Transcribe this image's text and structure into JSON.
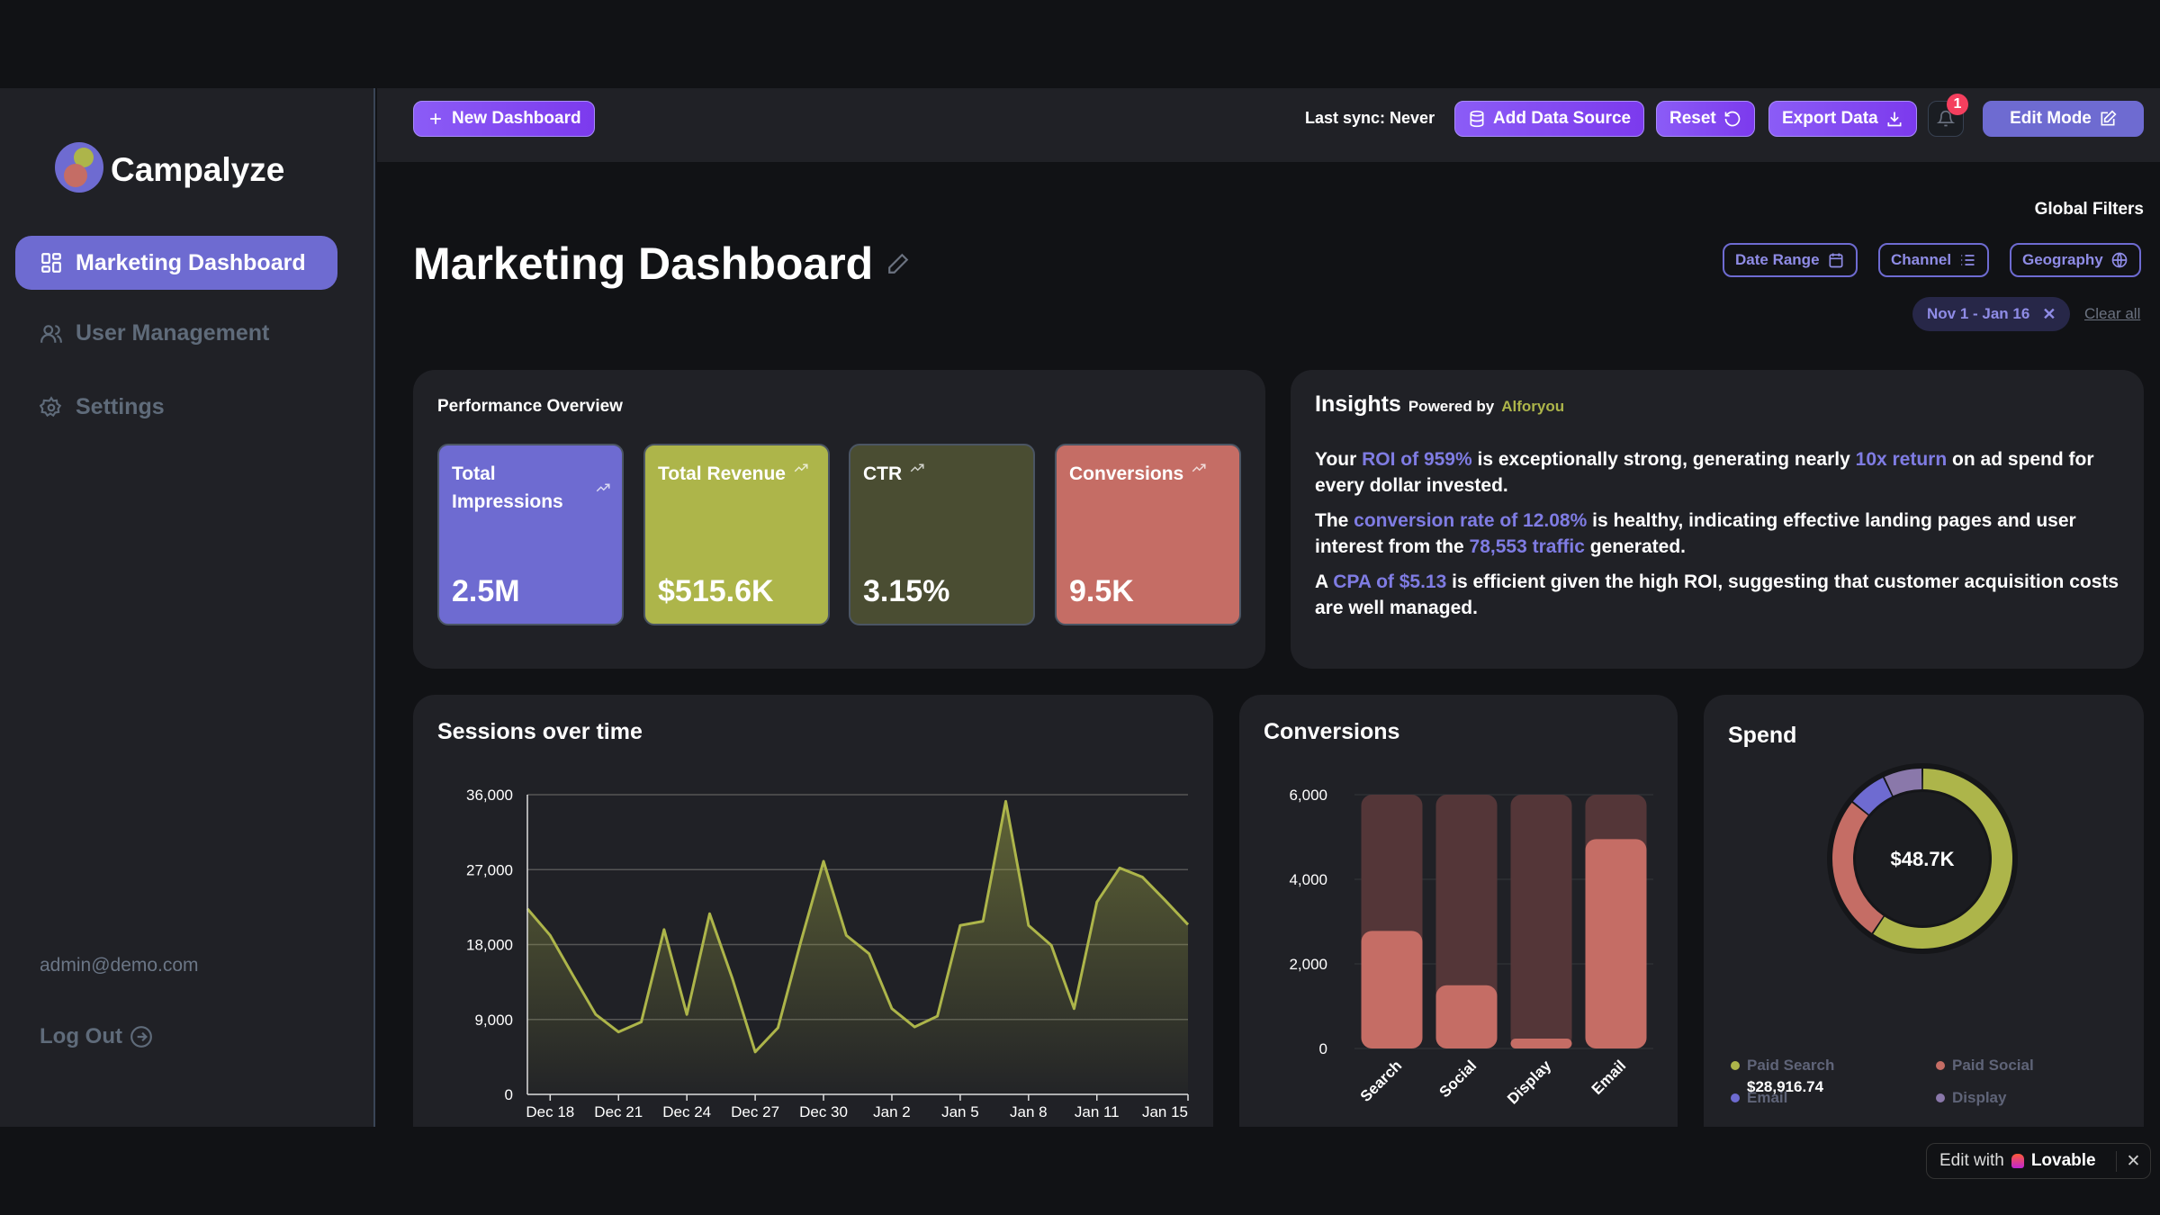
{
  "app": {
    "name": "Campalyze"
  },
  "sidebar": {
    "items": [
      {
        "label": "Marketing Dashboard",
        "icon": "grid-icon",
        "active": true
      },
      {
        "label": "User Management",
        "icon": "users-icon"
      },
      {
        "label": "Settings",
        "icon": "gear-icon"
      }
    ],
    "user_email": "admin@demo.com",
    "logout_label": "Log Out"
  },
  "topbar": {
    "new_dashboard": "New Dashboard",
    "last_sync": "Last sync: Never",
    "add_data_source": "Add Data Source",
    "reset": "Reset",
    "export_data": "Export Data",
    "notification_count": "1",
    "edit_mode": "Edit Mode"
  },
  "page": {
    "title": "Marketing Dashboard"
  },
  "filters": {
    "heading": "Global Filters",
    "buttons": [
      "Date Range",
      "Channel",
      "Geography"
    ],
    "active_chip": "Nov 1 - Jan 16",
    "clear_all": "Clear all"
  },
  "performance": {
    "title": "Performance Overview",
    "kpis": [
      {
        "label": "Total Impressions",
        "value": "2.5M",
        "color": "#6e6bd1"
      },
      {
        "label": "Total Revenue",
        "value": "$515.6K",
        "color": "#adb54a"
      },
      {
        "label": "CTR",
        "value": "3.15%",
        "color": "#4a4d32"
      },
      {
        "label": "Conversions",
        "value": "9.5K",
        "color": "#c56d65"
      }
    ]
  },
  "insights": {
    "title": "Insights",
    "powered_by": "Powered by",
    "provider": "Alforyou",
    "paragraphs": [
      [
        "Your ",
        "ROI of 959%",
        " is exceptionally strong, generating nearly ",
        "10x return",
        " on ad spend for every dollar invested."
      ],
      [
        "The ",
        "conversion rate of 12.08%",
        " is healthy, indicating effective landing pages and user interest from the ",
        "78,553 traffic",
        " generated."
      ],
      [
        "A ",
        "CPA of $5.13",
        " is efficient given the high ROI, suggesting that customer acquisition costs are well managed."
      ]
    ]
  },
  "chart_data": [
    {
      "type": "area",
      "title": "Sessions over time",
      "x": [
        "Dec 17",
        "Dec 18",
        "Dec 19",
        "Dec 20",
        "Dec 21",
        "Dec 22",
        "Dec 23",
        "Dec 24",
        "Dec 25",
        "Dec 26",
        "Dec 27",
        "Dec 28",
        "Dec 29",
        "Dec 30",
        "Dec 31",
        "Jan 1",
        "Jan 2",
        "Jan 3",
        "Jan 4",
        "Jan 5",
        "Jan 6",
        "Jan 7",
        "Jan 8",
        "Jan 9",
        "Jan 10",
        "Jan 11",
        "Jan 12",
        "Jan 13",
        "Jan 14",
        "Jan 15"
      ],
      "values": [
        22300,
        19100,
        14300,
        9600,
        7500,
        8700,
        19800,
        9600,
        21700,
        13900,
        5100,
        8000,
        18300,
        28000,
        19100,
        16900,
        10300,
        8100,
        9400,
        20300,
        20800,
        35200,
        20300,
        17900,
        10300,
        23100,
        27200,
        26100,
        23300,
        20400
      ],
      "x_tick_labels": [
        "Dec 18",
        "Dec 21",
        "Dec 24",
        "Dec 27",
        "Dec 30",
        "Jan 2",
        "Jan 5",
        "Jan 8",
        "Jan 11",
        "Jan 15"
      ],
      "y_ticks": [
        "0",
        "9,000",
        "18,000",
        "27,000",
        "36,000"
      ],
      "ylim": [
        0,
        36000
      ],
      "grid": true,
      "color": "#adb54a"
    },
    {
      "type": "bar",
      "title": "Conversions",
      "categories": [
        "Search",
        "Social",
        "Display",
        "Email"
      ],
      "values": [
        2780,
        1495,
        235,
        4950
      ],
      "ylim": [
        0,
        6000
      ],
      "y_ticks": [
        "0",
        "2,000",
        "4,000",
        "6,000"
      ],
      "grid": true,
      "color": "#c56d65",
      "background_color": "#543638"
    },
    {
      "type": "pie",
      "title": "Spend",
      "center_label": "$48.7K",
      "categories": [
        "Paid Search",
        "Paid Social",
        "Email",
        "Display"
      ],
      "values": [
        28916.74,
        12900,
        3450,
        3450
      ],
      "colors": [
        "#adb54a",
        "#c56d65",
        "#6e6bd1",
        "#8a78aa"
      ],
      "legend": [
        {
          "label": "Paid Search",
          "value": "$28,916.74"
        },
        {
          "label": "Paid Social"
        },
        {
          "label": "Email"
        },
        {
          "label": "Display"
        }
      ],
      "legend_position": "bottom"
    }
  ],
  "badge": {
    "text": "Edit with",
    "brand": "Lovable"
  }
}
